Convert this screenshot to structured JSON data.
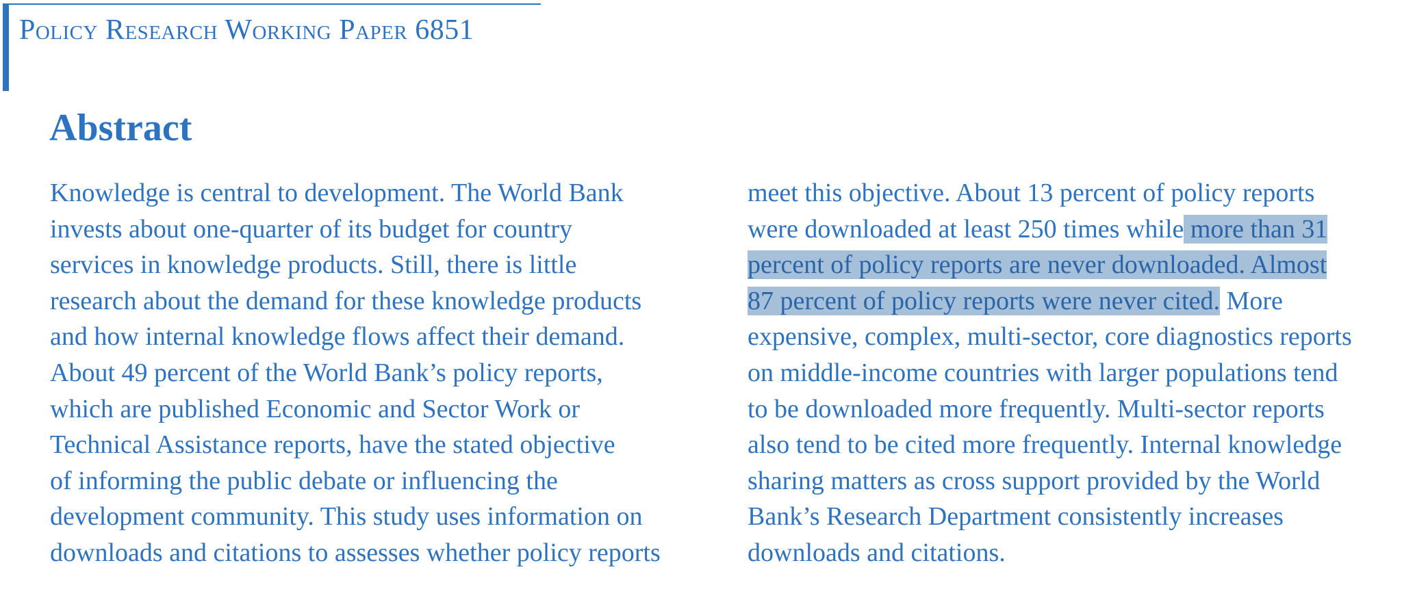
{
  "header": {
    "title": "Policy Research Working Paper 6851"
  },
  "abstract": {
    "heading": "Abstract",
    "left_lines": [
      "Knowledge is central to development. The World Bank",
      "invests about one-quarter of its budget for country",
      "services in knowledge products. Still, there is little",
      "research about the demand for these knowledge products",
      "and how internal knowledge flows affect their demand.",
      "About 49 percent of the World Bank’s policy reports,",
      "which are published Economic and Sector Work or",
      "Technical Assistance reports, have the stated objective",
      "of informing the public debate or influencing the",
      "development community. This study uses information on",
      "downloads and citations to assesses whether policy reports"
    ],
    "right_lines": {
      "line1": "meet this objective. About 13 percent of policy reports",
      "line2_pre": "were downloaded at least 250 times while",
      "line2_hl": " more than 31",
      "line3_hl": "percent of policy reports are never downloaded. Almost",
      "line4_hl": "87 percent of policy reports were never cited.",
      "line4_post": " More",
      "line5": "expensive, complex, multi-sector, core diagnostics reports",
      "line6": "on middle-income countries with larger populations tend",
      "line7": "to be downloaded more frequently. Multi-sector reports",
      "line8": "also tend to be cited more frequently. Internal knowledge",
      "line9": "sharing matters as cross support provided by the World",
      "line10": "Bank’s Research Department consistently increases",
      "line11": "downloads and citations."
    }
  },
  "colors": {
    "text": "#2e73c0",
    "highlight": "#a6c0da"
  }
}
